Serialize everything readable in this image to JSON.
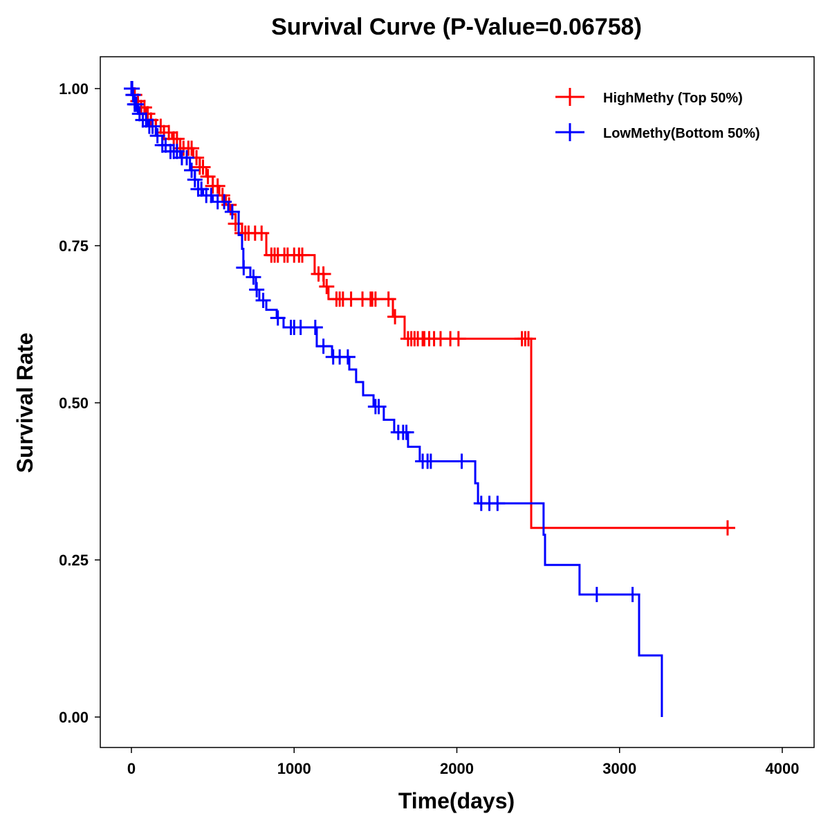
{
  "chart_data": {
    "type": "line",
    "title": "Survival Curve (P-Value=0.06758)",
    "xlabel": "Time(days)",
    "ylabel": "Survival Rate",
    "xlim": [
      -200,
      4200
    ],
    "ylim": [
      -0.045,
      1.05
    ],
    "xticks": [
      0,
      1000,
      2000,
      3000,
      4000
    ],
    "xtick_labels": [
      "0",
      "1000",
      "2000",
      "3000",
      "4000"
    ],
    "yticks": [
      0,
      0.25,
      0.5,
      0.75,
      1.0
    ],
    "ytick_labels": [
      "0.00",
      "0.25",
      "0.50",
      "0.75",
      "1.00"
    ],
    "grid": false,
    "legend_position": "top-right",
    "series": [
      {
        "name": "HighMethy (Top 50%)",
        "color": "#ff0000",
        "end": 3664,
        "steps": [
          [
            0,
            1
          ],
          [
            20,
            0.99
          ],
          [
            40,
            0.98
          ],
          [
            60,
            0.97
          ],
          [
            90,
            0.96
          ],
          [
            120,
            0.95
          ],
          [
            150,
            0.94
          ],
          [
            200,
            0.93
          ],
          [
            250,
            0.92
          ],
          [
            300,
            0.905
          ],
          [
            380,
            0.89
          ],
          [
            420,
            0.875
          ],
          [
            460,
            0.86
          ],
          [
            500,
            0.845
          ],
          [
            540,
            0.83
          ],
          [
            580,
            0.815
          ],
          [
            610,
            0.8
          ],
          [
            640,
            0.785
          ],
          [
            680,
            0.77
          ],
          [
            829,
            0.735
          ],
          [
            1126,
            0.705
          ],
          [
            1182,
            0.685
          ],
          [
            1211,
            0.665
          ],
          [
            1607,
            0.637
          ],
          [
            1679,
            0.602
          ],
          [
            2457,
            0.301
          ]
        ],
        "censored": [
          20,
          40,
          60,
          80,
          100,
          120,
          150,
          180,
          200,
          230,
          260,
          280,
          300,
          320,
          350,
          370,
          400,
          420,
          440,
          470,
          500,
          530,
          560,
          600,
          640,
          680,
          700,
          720,
          760,
          800,
          860,
          880,
          900,
          940,
          960,
          1000,
          1030,
          1050,
          1150,
          1180,
          1200,
          1260,
          1280,
          1300,
          1350,
          1420,
          1470,
          1480,
          1500,
          1580,
          1620,
          1700,
          1720,
          1740,
          1760,
          1790,
          1800,
          1830,
          1860,
          1900,
          1960,
          2010,
          2400,
          2420,
          2440,
          3664
        ]
      },
      {
        "name": "LowMethy(Bottom 50%)",
        "color": "#0000ff",
        "end": 3260,
        "steps": [
          [
            0,
            1
          ],
          [
            10,
            0.99
          ],
          [
            20,
            0.975
          ],
          [
            40,
            0.96
          ],
          [
            70,
            0.95
          ],
          [
            100,
            0.94
          ],
          [
            150,
            0.925
          ],
          [
            190,
            0.91
          ],
          [
            240,
            0.9
          ],
          [
            300,
            0.89
          ],
          [
            360,
            0.87
          ],
          [
            390,
            0.855
          ],
          [
            410,
            0.84
          ],
          [
            440,
            0.83
          ],
          [
            500,
            0.82
          ],
          [
            595,
            0.804
          ],
          [
            659,
            0.767
          ],
          [
            680,
            0.745
          ],
          [
            688,
            0.715
          ],
          [
            731,
            0.7
          ],
          [
            765,
            0.68
          ],
          [
            786,
            0.663
          ],
          [
            829,
            0.648
          ],
          [
            893,
            0.635
          ],
          [
            935,
            0.62
          ],
          [
            1139,
            0.59
          ],
          [
            1233,
            0.573
          ],
          [
            1339,
            0.553
          ],
          [
            1381,
            0.533
          ],
          [
            1424,
            0.512
          ],
          [
            1488,
            0.494
          ],
          [
            1551,
            0.473
          ],
          [
            1615,
            0.453
          ],
          [
            1700,
            0.43
          ],
          [
            1772,
            0.407
          ],
          [
            2113,
            0.372
          ],
          [
            2130,
            0.34
          ],
          [
            2533,
            0.29
          ],
          [
            2542,
            0.242
          ],
          [
            2754,
            0.195
          ],
          [
            3120,
            0.098
          ],
          [
            3260,
            0
          ]
        ],
        "censored": [
          0,
          5,
          10,
          20,
          30,
          50,
          70,
          90,
          110,
          130,
          160,
          190,
          210,
          240,
          260,
          280,
          310,
          340,
          370,
          390,
          410,
          430,
          460,
          490,
          530,
          570,
          620,
          690,
          750,
          770,
          810,
          900,
          980,
          1000,
          1040,
          1130,
          1180,
          1240,
          1280,
          1330,
          1500,
          1520,
          1640,
          1670,
          1690,
          1790,
          1820,
          1840,
          2030,
          2150,
          2200,
          2250,
          2860,
          3080
        ]
      }
    ]
  }
}
